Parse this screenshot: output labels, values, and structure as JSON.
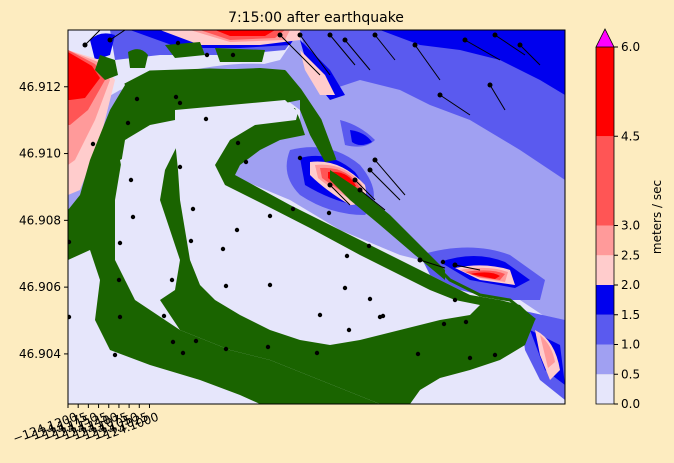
{
  "chart_data": {
    "type": "heatmap",
    "title": "7:15:00 after earthquake",
    "xlabel": "",
    "ylabel": "",
    "xlim": [
      -124.12,
      -123.998
    ],
    "ylim": [
      46.9025,
      46.9137
    ],
    "x_ticks": [
      -124.12,
      -124.1175,
      -124.115,
      -124.1125,
      -124.11,
      -124.1075,
      -124.105,
      -124.1025,
      -124.1
    ],
    "x_tick_labels": [
      "−124.1200",
      "−124.1175",
      "−124.1150",
      "−124.1125",
      "−124.1100",
      "−124.1075",
      "−124.1050",
      "−124.1025",
      "−124.1000"
    ],
    "y_ticks": [
      46.904,
      46.906,
      46.908,
      46.91,
      46.912
    ],
    "y_tick_labels": [
      "46.904",
      "46.906",
      "46.908",
      "46.910",
      "46.912"
    ],
    "colorbar": {
      "label": "meters / sec",
      "levels": [
        0.0,
        0.5,
        1.0,
        1.5,
        2.0,
        2.5,
        3.0,
        4.5,
        6.0
      ],
      "level_labels": [
        "0.0",
        "0.5",
        "1.0",
        "1.5",
        "2.0",
        "2.5",
        "3.0",
        "4.5",
        "6.0"
      ],
      "colors": [
        "#e6e6fb",
        "#a0a0f2",
        "#5a5aef",
        "#0000ee",
        "#ffcccc",
        "#ff9a9a",
        "#ff5555",
        "#ff0000"
      ],
      "over_color": "#ff00ff",
      "extend": "max"
    },
    "land_color": "#1a6400",
    "arrow_color": "#000000"
  }
}
